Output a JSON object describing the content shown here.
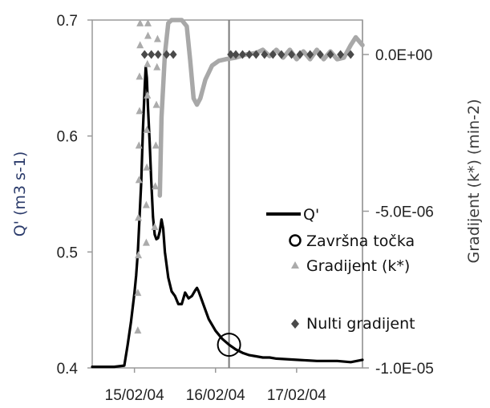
{
  "chart_data": {
    "type": "line",
    "y_left": {
      "label": "Q' (m3 s-1)",
      "range": [
        0.4,
        0.7
      ],
      "ticks": [
        {
          "value": 0.4,
          "label": "0.4"
        },
        {
          "value": 0.5,
          "label": "0.5"
        },
        {
          "value": 0.6,
          "label": "0.6"
        },
        {
          "value": 0.7,
          "label": "0.7"
        }
      ]
    },
    "y_right": {
      "label": "Gradijent (k*) (min-2)",
      "range": [
        -1e-05,
        1.1e-06
      ],
      "ticks": [
        {
          "value": 0.0,
          "label": "0.0E+00"
        },
        {
          "value": -5e-06,
          "label": "-5.0E-06"
        },
        {
          "value": -1e-05,
          "label": "-1.0E-05"
        }
      ]
    },
    "x_axis": {
      "range": [
        "2004-02-14T11:30",
        "2004-02-17T19:30"
      ],
      "ticks": [
        {
          "value": "2004-02-15T00:00",
          "label": "15/02/04"
        },
        {
          "value": "2004-02-16T00:00",
          "label": "16/02/04"
        },
        {
          "value": "2004-02-17T00:00",
          "label": "17/02/04"
        }
      ]
    },
    "end_point_marker_time": "2004-02-16T04:00",
    "series": [
      {
        "name": "Q'",
        "axis": "left",
        "style": "line",
        "color": "#000000",
        "points": [
          [
            "2004-02-14T11:30",
            0.401
          ],
          [
            "2004-02-14T15:00",
            0.401
          ],
          [
            "2004-02-14T18:00",
            0.401
          ],
          [
            "2004-02-14T21:00",
            0.402
          ],
          [
            "2004-02-14T22:00",
            0.42
          ],
          [
            "2004-02-14T23:00",
            0.44
          ],
          [
            "2004-02-15T00:00",
            0.465
          ],
          [
            "2004-02-15T00:30",
            0.48
          ],
          [
            "2004-02-15T01:00",
            0.5
          ],
          [
            "2004-02-15T01:30",
            0.53
          ],
          [
            "2004-02-15T02:00",
            0.56
          ],
          [
            "2004-02-15T02:30",
            0.605
          ],
          [
            "2004-02-15T03:00",
            0.64
          ],
          [
            "2004-02-15T03:20",
            0.66
          ],
          [
            "2004-02-15T03:40",
            0.65
          ],
          [
            "2004-02-15T04:00",
            0.625
          ],
          [
            "2004-02-15T04:30",
            0.595
          ],
          [
            "2004-02-15T05:00",
            0.56
          ],
          [
            "2004-02-15T05:30",
            0.53
          ],
          [
            "2004-02-15T06:00",
            0.515
          ],
          [
            "2004-02-15T06:30",
            0.511
          ],
          [
            "2004-02-15T07:00",
            0.512
          ],
          [
            "2004-02-15T07:30",
            0.518
          ],
          [
            "2004-02-15T08:00",
            0.528
          ],
          [
            "2004-02-15T08:30",
            0.52
          ],
          [
            "2004-02-15T09:00",
            0.5
          ],
          [
            "2004-02-15T10:00",
            0.478
          ],
          [
            "2004-02-15T11:00",
            0.466
          ],
          [
            "2004-02-15T12:00",
            0.462
          ],
          [
            "2004-02-15T13:00",
            0.455
          ],
          [
            "2004-02-15T14:00",
            0.455
          ],
          [
            "2004-02-15T15:00",
            0.465
          ],
          [
            "2004-02-15T16:00",
            0.46
          ],
          [
            "2004-02-15T17:00",
            0.462
          ],
          [
            "2004-02-15T18:00",
            0.467
          ],
          [
            "2004-02-15T18:30",
            0.469
          ],
          [
            "2004-02-15T19:00",
            0.466
          ],
          [
            "2004-02-15T20:00",
            0.458
          ],
          [
            "2004-02-15T21:00",
            0.45
          ],
          [
            "2004-02-15T22:00",
            0.442
          ],
          [
            "2004-02-16T00:00",
            0.432
          ],
          [
            "2004-02-16T02:00",
            0.425
          ],
          [
            "2004-02-16T04:00",
            0.42
          ],
          [
            "2004-02-16T06:00",
            0.416
          ],
          [
            "2004-02-16T08:00",
            0.413
          ],
          [
            "2004-02-16T10:00",
            0.411
          ],
          [
            "2004-02-16T12:00",
            0.41
          ],
          [
            "2004-02-16T14:00",
            0.409
          ],
          [
            "2004-02-16T16:00",
            0.409
          ],
          [
            "2004-02-16T18:00",
            0.408
          ],
          [
            "2004-02-17T00:00",
            0.407
          ],
          [
            "2004-02-17T06:00",
            0.406
          ],
          [
            "2004-02-17T12:00",
            0.406
          ],
          [
            "2004-02-17T16:00",
            0.405
          ],
          [
            "2004-02-17T19:30",
            0.407
          ]
        ]
      },
      {
        "name": "Završna točka",
        "axis": "left",
        "style": "circle",
        "color": "#000000",
        "points": [
          [
            "2004-02-16T04:00",
            0.42
          ]
        ]
      },
      {
        "name": "Gradijent (k*)",
        "axis": "right",
        "style": "triangle",
        "color": "#ababab",
        "points": [
          [
            "2004-02-15T01:00",
            -8.8e-06
          ],
          [
            "2004-02-15T01:00",
            -7.6e-06
          ],
          [
            "2004-02-15T01:10",
            -6.4e-06
          ],
          [
            "2004-02-15T01:10",
            -5.2e-06
          ],
          [
            "2004-02-15T01:20",
            -4e-06
          ],
          [
            "2004-02-15T01:20",
            -2.9e-06
          ],
          [
            "2004-02-15T01:30",
            -1.8e-06
          ],
          [
            "2004-02-15T01:30",
            -7e-07
          ],
          [
            "2004-02-15T01:40",
            3e-07
          ],
          [
            "2004-02-15T01:40",
            1e-06
          ],
          [
            "2004-02-15T03:30",
            -6e-06
          ],
          [
            "2004-02-15T03:30",
            -4.8e-06
          ],
          [
            "2004-02-15T03:40",
            -3.6e-06
          ],
          [
            "2004-02-15T03:40",
            -2.4e-06
          ],
          [
            "2004-02-15T03:50",
            -1.3e-06
          ],
          [
            "2004-02-15T03:50",
            -3e-07
          ],
          [
            "2004-02-15T04:00",
            6e-07
          ],
          [
            "2004-02-15T04:00",
            1e-06
          ],
          [
            "2004-02-15T06:00",
            -5.5e-06
          ],
          [
            "2004-02-15T06:10",
            -4.2e-06
          ],
          [
            "2004-02-15T06:20",
            -2.9e-06
          ],
          [
            "2004-02-15T06:30",
            -1.6e-06
          ],
          [
            "2004-02-15T06:40",
            -4e-07
          ],
          [
            "2004-02-15T06:50",
            5e-07
          ]
        ]
      },
      {
        "name": "Gradijent (k*)",
        "axis": "right",
        "style": "line",
        "color": "#a8a8a8",
        "points": [
          [
            "2004-02-15T07:30",
            -4.5e-06
          ],
          [
            "2004-02-15T08:00",
            -2e-06
          ],
          [
            "2004-02-15T09:00",
            0.0
          ],
          [
            "2004-02-15T10:00",
            1e-06
          ],
          [
            "2004-02-15T11:00",
            1.1e-06
          ],
          [
            "2004-02-15T12:00",
            1.1e-06
          ],
          [
            "2004-02-15T14:00",
            1.1e-06
          ],
          [
            "2004-02-15T15:30",
            9e-07
          ],
          [
            "2004-02-15T16:30",
            -2e-07
          ],
          [
            "2004-02-15T17:30",
            -1.4e-06
          ],
          [
            "2004-02-15T18:30",
            -1.6e-06
          ],
          [
            "2004-02-15T19:30",
            -1.4e-06
          ],
          [
            "2004-02-15T21:00",
            -8e-07
          ],
          [
            "2004-02-15T23:00",
            -3.5e-07
          ],
          [
            "2004-02-16T01:00",
            -2e-07
          ],
          [
            "2004-02-16T03:00",
            -1.5e-07
          ],
          [
            "2004-02-16T06:00",
            -1e-07
          ],
          [
            "2004-02-16T09:00",
            0.0
          ],
          [
            "2004-02-16T12:00",
            5e-08
          ],
          [
            "2004-02-16T14:00",
            1.5e-07
          ],
          [
            "2004-02-16T16:00",
            -5e-08
          ],
          [
            "2004-02-16T18:00",
            1.5e-07
          ],
          [
            "2004-02-16T20:00",
            -1e-07
          ],
          [
            "2004-02-16T22:00",
            1.5e-07
          ],
          [
            "2004-02-17T00:00",
            -1.5e-07
          ],
          [
            "2004-02-17T02:00",
            1e-07
          ],
          [
            "2004-02-17T04:00",
            -1.5e-07
          ],
          [
            "2004-02-17T06:00",
            1.5e-07
          ],
          [
            "2004-02-17T08:00",
            -1.5e-07
          ],
          [
            "2004-02-17T10:00",
            1e-07
          ],
          [
            "2004-02-17T12:00",
            -1.5e-07
          ],
          [
            "2004-02-17T14:00",
            -1e-07
          ],
          [
            "2004-02-17T16:00",
            3e-07
          ],
          [
            "2004-02-17T17:30",
            5.5e-07
          ],
          [
            "2004-02-17T19:30",
            3e-07
          ]
        ]
      },
      {
        "name": "Nulti gradijent",
        "axis": "right",
        "style": "diamond",
        "color": "#4a4a4a",
        "points": [
          [
            "2004-02-15T03:00",
            0.0
          ],
          [
            "2004-02-15T05:00",
            0.0
          ],
          [
            "2004-02-15T07:00",
            0.0
          ],
          [
            "2004-02-15T09:30",
            0.0
          ],
          [
            "2004-02-15T11:30",
            0.0
          ],
          [
            "2004-02-16T04:30",
            0.0
          ],
          [
            "2004-02-16T06:00",
            0.0
          ],
          [
            "2004-02-16T08:00",
            0.0
          ],
          [
            "2004-02-16T10:00",
            0.0
          ],
          [
            "2004-02-16T12:00",
            0.0
          ],
          [
            "2004-02-16T14:30",
            0.0
          ],
          [
            "2004-02-16T17:00",
            0.0
          ],
          [
            "2004-02-16T19:30",
            0.0
          ],
          [
            "2004-02-16T22:30",
            0.0
          ],
          [
            "2004-02-17T01:00",
            0.0
          ],
          [
            "2004-02-17T04:00",
            0.0
          ],
          [
            "2004-02-17T07:00",
            0.0
          ],
          [
            "2004-02-17T10:00",
            0.0
          ],
          [
            "2004-02-17T13:00",
            0.0
          ],
          [
            "2004-02-17T16:00",
            0.0
          ]
        ]
      }
    ],
    "legend": {
      "placement": "right",
      "entries": [
        {
          "label": "Q'",
          "symbol": "line",
          "color": "#000000"
        },
        {
          "label": "Završna točka",
          "symbol": "circle",
          "color": "#000000"
        },
        {
          "label": "Gradijent (k*)",
          "symbol": "triangle",
          "color": "#ababab"
        },
        {
          "label": "Nulti gradijent",
          "symbol": "diamond",
          "color": "#4a4a4a"
        }
      ]
    }
  }
}
